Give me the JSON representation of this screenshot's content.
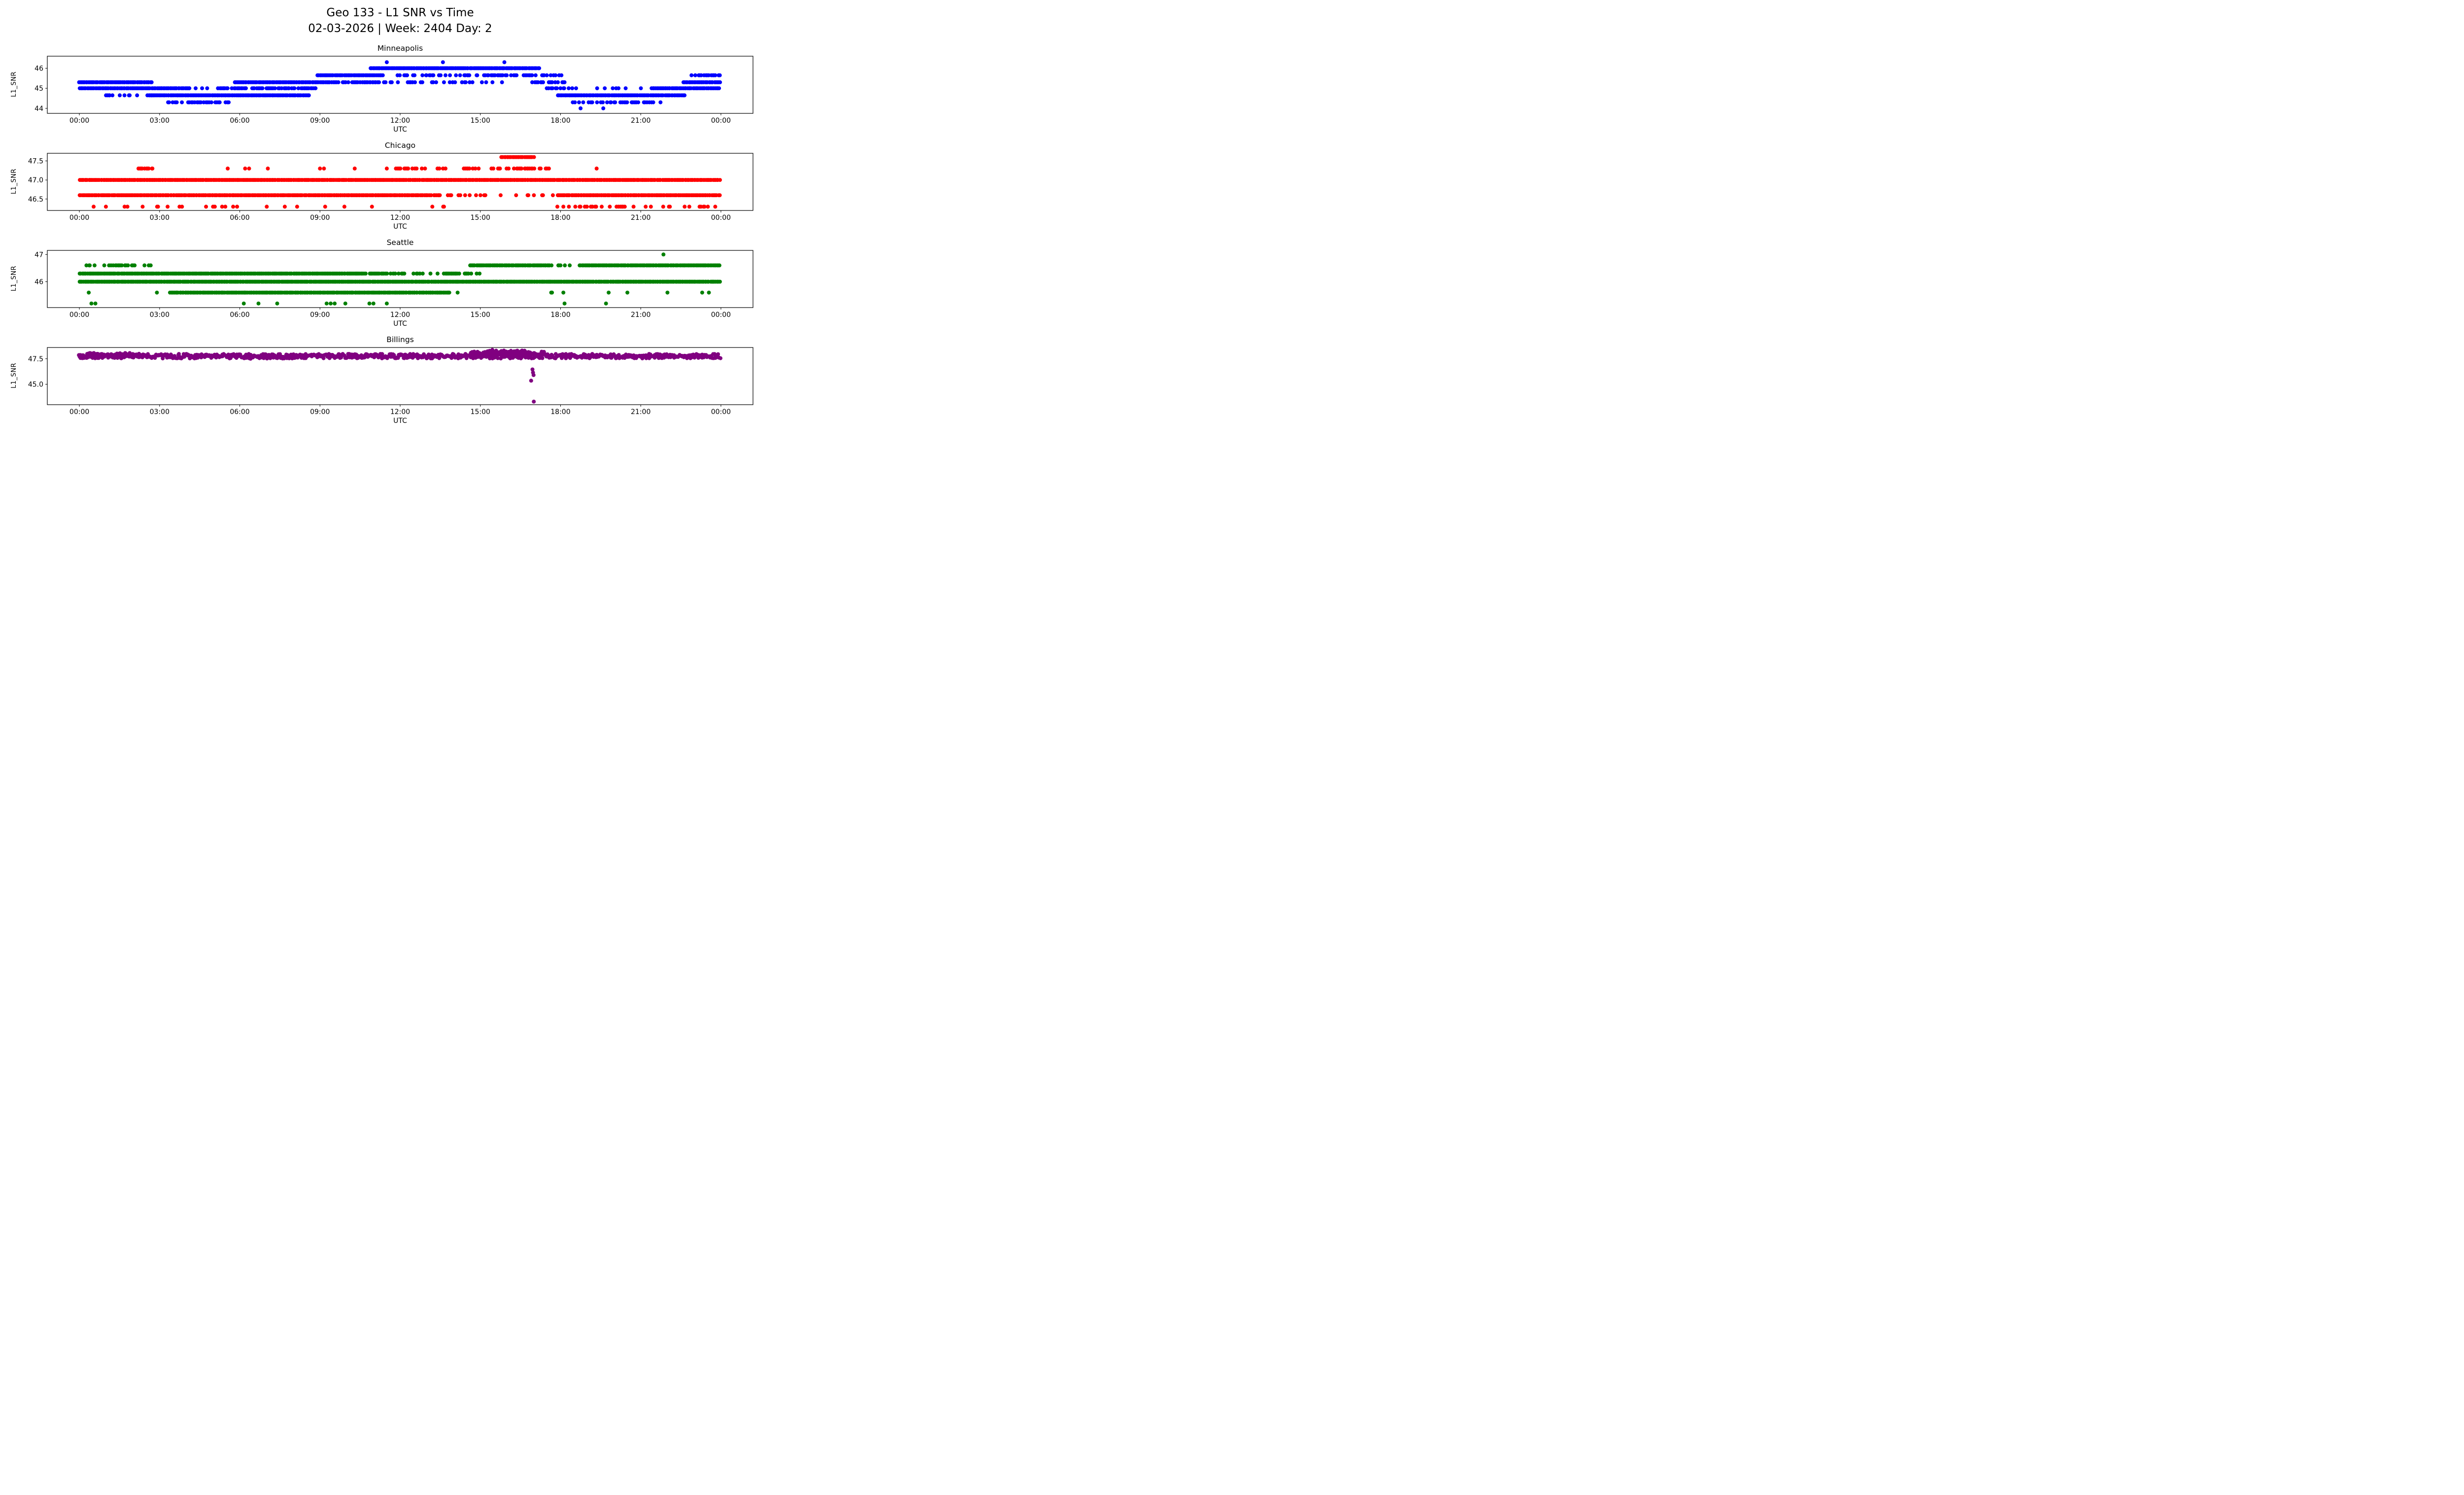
{
  "figure": {
    "suptitle_line1": "Geo 133 - L1 SNR vs Time",
    "suptitle_line2": "02-03-2026 | Week: 2404 Day: 2"
  },
  "chart_data": [
    {
      "type": "scatter",
      "title": "Minneapolis",
      "color": "#0000ff",
      "xlabel": "UTC",
      "ylabel": "L1_SNR",
      "xlim": [
        -1.2,
        25.2
      ],
      "ylim": [
        43.75,
        46.6
      ],
      "yticks": [
        44,
        45,
        46
      ],
      "ytick_labels": [
        "44",
        "45",
        "46"
      ],
      "xticks": [
        0,
        3,
        6,
        9,
        12,
        15,
        18,
        21,
        24
      ],
      "xtick_labels": [
        "00:00",
        "03:00",
        "06:00",
        "09:00",
        "12:00",
        "15:00",
        "18:00",
        "21:00",
        "00:00"
      ],
      "marker_radius": 4,
      "segments": [
        [
          0,
          2.7,
          45.3,
          1
        ],
        [
          0,
          4.1,
          45.0,
          1
        ],
        [
          1.0,
          2.7,
          44.65,
          0.4
        ],
        [
          2.6,
          8.6,
          44.65,
          1
        ],
        [
          3.3,
          5.6,
          44.3,
          0.5
        ],
        [
          4.1,
          5.2,
          45.0,
          0.25
        ],
        [
          5.2,
          8.9,
          45.0,
          0.75
        ],
        [
          5.8,
          9.4,
          45.3,
          1
        ],
        [
          8.9,
          11.4,
          45.65,
          1
        ],
        [
          9.3,
          11.6,
          45.3,
          0.6
        ],
        [
          10.9,
          17.25,
          46.0,
          1
        ],
        [
          11.3,
          17.3,
          45.65,
          0.5
        ],
        [
          11.6,
          15.9,
          45.3,
          0.3
        ],
        [
          16.9,
          18.4,
          45.3,
          0.65
        ],
        [
          17.3,
          18.1,
          45.65,
          0.5
        ],
        [
          17.5,
          18.7,
          45.0,
          0.5
        ],
        [
          17.9,
          22.7,
          44.65,
          1
        ],
        [
          18.4,
          21.9,
          44.3,
          0.5
        ],
        [
          19.0,
          21.3,
          45.0,
          0.18
        ],
        [
          21.4,
          24,
          45.0,
          1
        ],
        [
          22.6,
          24,
          45.3,
          1
        ],
        [
          23.0,
          24,
          45.65,
          0.5
        ]
      ],
      "points": [
        [
          11.5,
          46.3
        ],
        [
          13.6,
          46.3
        ],
        [
          15.9,
          46.3
        ],
        [
          18.75,
          44.0
        ],
        [
          19.6,
          44.0
        ],
        [
          22.9,
          45.65
        ]
      ]
    },
    {
      "type": "scatter",
      "title": "Chicago",
      "color": "#ff0000",
      "xlabel": "UTC",
      "ylabel": "L1_SNR",
      "xlim": [
        -1.2,
        25.2
      ],
      "ylim": [
        46.2,
        47.7
      ],
      "yticks": [
        46.5,
        47.0,
        47.5
      ],
      "ytick_labels": [
        "46.5",
        "47.0",
        "47.5"
      ],
      "xticks": [
        0,
        3,
        6,
        9,
        12,
        15,
        18,
        21,
        24
      ],
      "xtick_labels": [
        "00:00",
        "03:00",
        "06:00",
        "09:00",
        "12:00",
        "15:00",
        "18:00",
        "21:00",
        "00:00"
      ],
      "marker_radius": 4,
      "segments": [
        [
          0,
          24,
          47.0,
          1
        ],
        [
          0,
          13.2,
          46.6,
          1
        ],
        [
          13.2,
          15.3,
          46.6,
          0.55
        ],
        [
          15.35,
          17.85,
          46.6,
          0.1
        ],
        [
          17.9,
          24,
          46.6,
          1
        ],
        [
          0.2,
          10.2,
          46.3,
          0.1
        ],
        [
          10.5,
          15.0,
          46.3,
          0.05
        ],
        [
          17.8,
          24,
          46.3,
          0.28
        ],
        [
          2.2,
          2.75,
          47.3,
          0.9
        ],
        [
          11.8,
          13.8,
          47.3,
          0.4
        ],
        [
          14.4,
          15.0,
          47.3,
          0.5
        ],
        [
          15.4,
          17.6,
          47.3,
          0.6
        ],
        [
          15.8,
          17.05,
          47.6,
          1
        ]
      ],
      "points": [
        [
          5.55,
          47.3
        ],
        [
          6.2,
          47.3
        ],
        [
          6.35,
          47.3
        ],
        [
          7.05,
          47.3
        ],
        [
          9.0,
          47.3
        ],
        [
          9.15,
          47.3
        ],
        [
          10.3,
          47.3
        ],
        [
          11.5,
          47.3
        ],
        [
          19.35,
          47.3
        ],
        [
          3.3,
          46.3
        ],
        [
          5.0,
          46.3
        ]
      ]
    },
    {
      "type": "scatter",
      "title": "Seattle",
      "color": "#008000",
      "xlabel": "UTC",
      "ylabel": "L1_SNR",
      "xlim": [
        -1.2,
        25.2
      ],
      "ylim": [
        45.05,
        47.15
      ],
      "yticks": [
        46,
        47
      ],
      "ytick_labels": [
        "46",
        "47"
      ],
      "xticks": [
        0,
        3,
        6,
        9,
        12,
        15,
        18,
        21,
        24
      ],
      "xtick_labels": [
        "00:00",
        "03:00",
        "06:00",
        "09:00",
        "12:00",
        "15:00",
        "18:00",
        "21:00",
        "00:00"
      ],
      "marker_radius": 4,
      "segments": [
        [
          0,
          24,
          46.0,
          1
        ],
        [
          0,
          10.6,
          46.3,
          1
        ],
        [
          10.6,
          12.2,
          46.3,
          0.7
        ],
        [
          12.2,
          15.0,
          46.3,
          0.4
        ],
        [
          0.2,
          1.05,
          46.6,
          0.25
        ],
        [
          1.1,
          2.1,
          46.6,
          0.85
        ],
        [
          2.4,
          2.7,
          46.6,
          0.7
        ],
        [
          14.6,
          17.7,
          46.6,
          1
        ],
        [
          17.9,
          18.4,
          46.6,
          0.3
        ],
        [
          18.7,
          24,
          46.6,
          1
        ],
        [
          3.4,
          13.9,
          45.6,
          1
        ],
        [
          17.6,
          18.3,
          45.6,
          0.3
        ]
      ],
      "points": [
        [
          0.35,
          45.6
        ],
        [
          2.9,
          45.6
        ],
        [
          14.15,
          45.6
        ],
        [
          19.8,
          45.6
        ],
        [
          20.5,
          45.6
        ],
        [
          22.0,
          45.6
        ],
        [
          23.3,
          45.6
        ],
        [
          23.55,
          45.6
        ],
        [
          0.45,
          45.2
        ],
        [
          0.6,
          45.2
        ],
        [
          6.15,
          45.2
        ],
        [
          6.7,
          45.2
        ],
        [
          7.4,
          45.2
        ],
        [
          9.25,
          45.2
        ],
        [
          9.4,
          45.2
        ],
        [
          9.55,
          45.2
        ],
        [
          9.95,
          45.2
        ],
        [
          10.85,
          45.2
        ],
        [
          11.0,
          45.2
        ],
        [
          11.5,
          45.2
        ],
        [
          18.15,
          45.2
        ],
        [
          19.7,
          45.2
        ],
        [
          21.85,
          47.0
        ]
      ]
    },
    {
      "type": "scatter",
      "title": "Billings",
      "color": "#800080",
      "xlabel": "UTC",
      "ylabel": "L1_SNR",
      "xlim": [
        -1.2,
        25.2
      ],
      "ylim": [
        43.0,
        48.6
      ],
      "yticks": [
        45.0,
        47.5
      ],
      "ytick_labels": [
        "45.0",
        "47.5"
      ],
      "xticks": [
        0,
        3,
        6,
        9,
        12,
        15,
        18,
        21,
        24
      ],
      "xtick_labels": [
        "00:00",
        "03:00",
        "06:00",
        "09:00",
        "12:00",
        "15:00",
        "18:00",
        "21:00",
        "00:00"
      ],
      "marker_radius": 4,
      "segments": [
        [
          0,
          24,
          47.75,
          1,
          0.22,
          0.03
        ],
        [
          0,
          2.6,
          47.95,
          0.7,
          0.12
        ],
        [
          14.6,
          17.4,
          48.05,
          1,
          0.18,
          0.04
        ],
        [
          15.2,
          16.9,
          48.25,
          0.8,
          0.12
        ],
        [
          6.0,
          8.6,
          47.6,
          0.4,
          0.1
        ]
      ],
      "points": [
        [
          16.95,
          46.45
        ],
        [
          16.97,
          46.15
        ],
        [
          16.99,
          45.9
        ],
        [
          17.0,
          43.3
        ],
        [
          16.9,
          45.35
        ]
      ]
    }
  ]
}
